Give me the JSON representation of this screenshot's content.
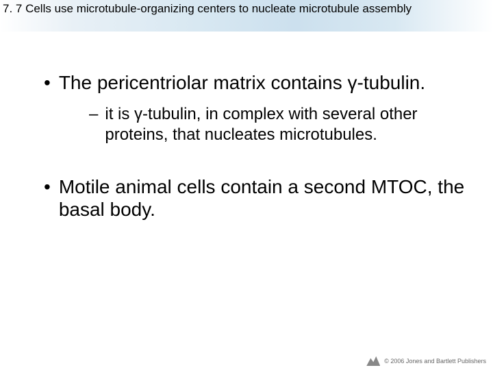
{
  "header": {
    "title": "7. 7 Cells use microtubule-organizing centers to nucleate microtubule assembly"
  },
  "bullets": {
    "b1": {
      "text": "The pericentriolar matrix contains γ-tubulin."
    },
    "b1_sub": {
      "text": "it is γ-tubulin, in complex with several other proteins, that nucleates microtubules."
    },
    "b2": {
      "text": "Motile animal cells contain a second MTOC, the basal body."
    }
  },
  "footer": {
    "copyright": "© 2006 Jones and Bartlett Publishers"
  },
  "style": {
    "header_gradient_colors": [
      "#ffffff",
      "#e8f0f6",
      "#d8e8f2",
      "#cce0ee"
    ],
    "body_bg": "#ffffff",
    "text_color": "#000000",
    "footer_color": "#666666",
    "header_fontsize": 17,
    "bullet1_fontsize": 28,
    "bullet2_fontsize": 24,
    "footer_fontsize": 9
  }
}
